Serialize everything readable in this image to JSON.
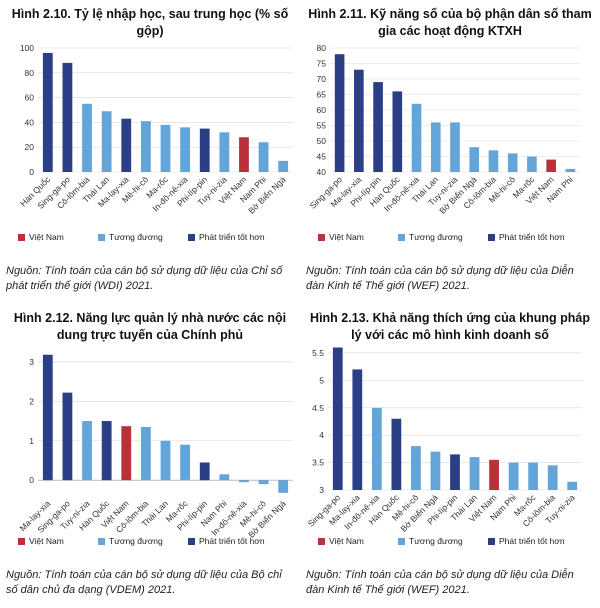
{
  "colors": {
    "advanced": "#2b3f86",
    "vietnam": "#b8323a",
    "equivalent": "#63a4d9",
    "grid": "#d9d9d9"
  },
  "chart_data": [
    {
      "type": "bar",
      "title": "Hình 2.10. Tỷ lệ nhập học, sau trung học (% số gộp)",
      "source_label": "Nguồn:",
      "source_text": "Tính toán của cán bộ sử dụng dữ liệu của Chỉ số phát triển thế giới (WDI) 2021.",
      "categories": [
        "Hàn Quốc",
        "Sing-ga-po",
        "Cô-lôm-bia",
        "Thái Lan",
        "Ma-lay-xia",
        "Mê-hi-cô",
        "Ma-rốc",
        "In-đô-nê-xia",
        "Phi-líp-pin",
        "Tuy-ni-zia",
        "Việt Nam",
        "Nam Phi",
        "Bờ Biển Ngà"
      ],
      "values": [
        96,
        88,
        55,
        49,
        43,
        41,
        38,
        36,
        35,
        32,
        28,
        24,
        9
      ],
      "groups": [
        "advanced",
        "advanced",
        "equivalent",
        "equivalent",
        "advanced",
        "equivalent",
        "equivalent",
        "equivalent",
        "advanced",
        "equivalent",
        "vietnam",
        "equivalent",
        "equivalent"
      ],
      "yticks": [
        0,
        20,
        40,
        60,
        80,
        100
      ],
      "ylim": [
        0,
        100
      ],
      "legend": [
        "Việt Nam",
        "Tương đương",
        "Phát triển tốt hơn"
      ]
    },
    {
      "type": "bar",
      "title": "Hình 2.11. Kỹ năng số của bộ phận dân số tham gia các hoạt động KTXH",
      "source_label": "Nguồn:",
      "source_text": "Tính toán của cán bộ sử dụng dữ liệu của Diễn đàn Kinh tế Thế giới (WEF) 2021.",
      "categories": [
        "Sing-ga-po",
        "Ma-lay-xia",
        "Phi-líp-pin",
        "Hàn Quốc",
        "In-đô-nê-xia",
        "Thái Lan",
        "Tuy-ni-zia",
        "Bờ Biển Ngà",
        "Cô-lôm-bia",
        "Mê-hi-cô",
        "Ma-rốc",
        "Việt Nam",
        "Nam Phi"
      ],
      "values": [
        78,
        73,
        69,
        66,
        62,
        56,
        56,
        48,
        47,
        46,
        45,
        44,
        41
      ],
      "groups": [
        "advanced",
        "advanced",
        "advanced",
        "advanced",
        "equivalent",
        "equivalent",
        "equivalent",
        "equivalent",
        "equivalent",
        "equivalent",
        "equivalent",
        "vietnam",
        "equivalent"
      ],
      "yticks": [
        40,
        45,
        50,
        55,
        60,
        65,
        70,
        75,
        80
      ],
      "ylim": [
        40,
        80
      ],
      "legend": [
        "Việt Nam",
        "Tương đương",
        "Phát triển tốt hơn"
      ]
    },
    {
      "type": "bar",
      "title": "Hình 2.12. Năng lực quản lý nhà nước các nội dung trực tuyến của Chính phủ",
      "source_label": "Nguồn:",
      "source_text": "Tính toán của cán bộ sử dụng dữ liệu của Bộ chỉ số dân chủ đa dạng (VDEM) 2021.",
      "categories": [
        "Ma-lay-xia",
        "Sing-ga-po",
        "Tuy-ni-zia",
        "Hàn Quốc",
        "Việt Nam",
        "Cô-lôm-bia",
        "Thái Lan",
        "Ma-rốc",
        "Phi-líp-pin",
        "Nam Phi",
        "In-đô-nê-xia",
        "Mê-hi-cô",
        "Bờ Biển Ngà"
      ],
      "values": [
        3.18,
        2.22,
        1.5,
        1.5,
        1.37,
        1.35,
        1.0,
        0.9,
        0.45,
        0.15,
        -0.05,
        -0.1,
        -0.32
      ],
      "groups": [
        "advanced",
        "advanced",
        "equivalent",
        "advanced",
        "vietnam",
        "equivalent",
        "equivalent",
        "equivalent",
        "advanced",
        "equivalent",
        "equivalent",
        "equivalent",
        "equivalent"
      ],
      "yticks": [
        0,
        1,
        2,
        3
      ],
      "ylim": [
        -0.4,
        3.3
      ],
      "legend": [
        "Việt Nam",
        "Tương đương",
        "Phát triển tốt hơn"
      ]
    },
    {
      "type": "bar",
      "title": "Hình 2.13. Khả năng thích ứng của khung pháp lý với các mô hình kinh doanh số",
      "source_label": "Nguồn:",
      "source_text": "Tính toán của cán bộ sử dụng dữ liệu của Diễn đàn Kinh tế Thế giới (WEF) 2021.",
      "categories": [
        "Sing-ga-po",
        "Ma-lay-xia",
        "In-đô-nê-xia",
        "Hàn Quốc",
        "Mê-hi-cô",
        "Bờ Biển Ngà",
        "Phi-líp-pin",
        "Thái Lan",
        "Việt Nam",
        "Nam Phi",
        "Ma-rốc",
        "Cô-lôm-bia",
        "Tuy-ni-zia"
      ],
      "values": [
        5.6,
        5.2,
        4.5,
        4.3,
        3.8,
        3.7,
        3.65,
        3.6,
        3.55,
        3.5,
        3.5,
        3.45,
        3.15
      ],
      "groups": [
        "advanced",
        "advanced",
        "equivalent",
        "advanced",
        "equivalent",
        "equivalent",
        "advanced",
        "equivalent",
        "vietnam",
        "equivalent",
        "equivalent",
        "equivalent",
        "equivalent"
      ],
      "yticks": [
        3,
        3.5,
        4,
        4.5,
        5,
        5.5
      ],
      "ylim": [
        3,
        5.7
      ],
      "legend": [
        "Việt Nam",
        "Tương đương",
        "Phát triển tốt hơn"
      ]
    }
  ]
}
